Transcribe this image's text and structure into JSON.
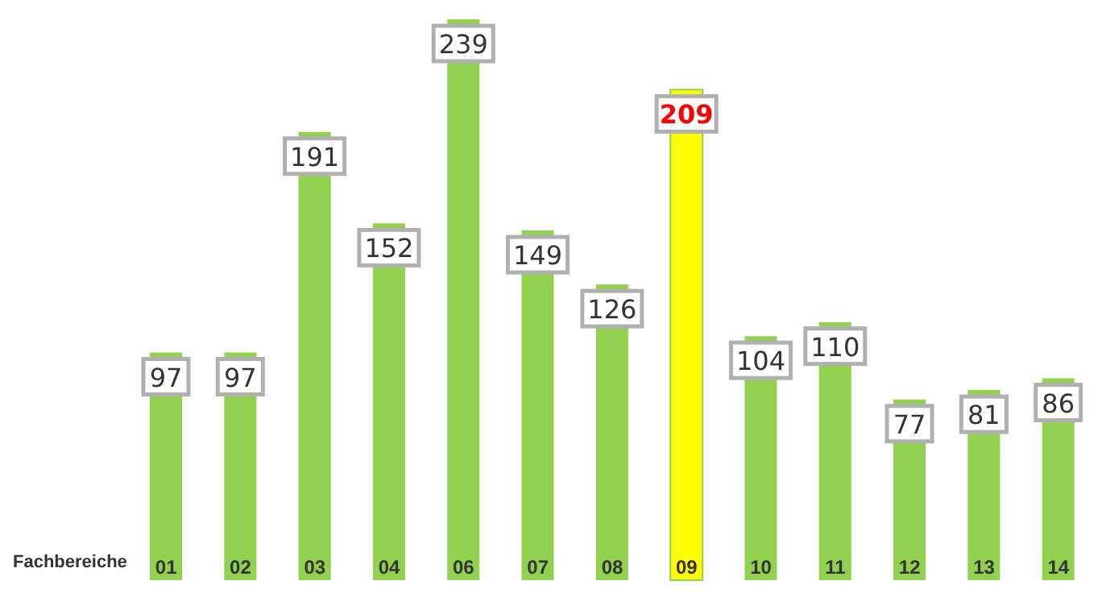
{
  "chart_data": {
    "type": "bar",
    "xlabel": "Fachbereiche",
    "categories": [
      "01",
      "02",
      "03",
      "04",
      "06",
      "07",
      "08",
      "09",
      "10",
      "11",
      "12",
      "13",
      "14"
    ],
    "values": [
      97,
      97,
      191,
      152,
      239,
      149,
      126,
      209,
      104,
      110,
      77,
      81,
      86
    ],
    "colors": [
      "#92d050",
      "#92d050",
      "#92d050",
      "#92d050",
      "#92d050",
      "#92d050",
      "#92d050",
      "#ffff00",
      "#92d050",
      "#92d050",
      "#92d050",
      "#92d050",
      "#92d050"
    ],
    "data_labels": true,
    "grid": false,
    "legend": false
  }
}
